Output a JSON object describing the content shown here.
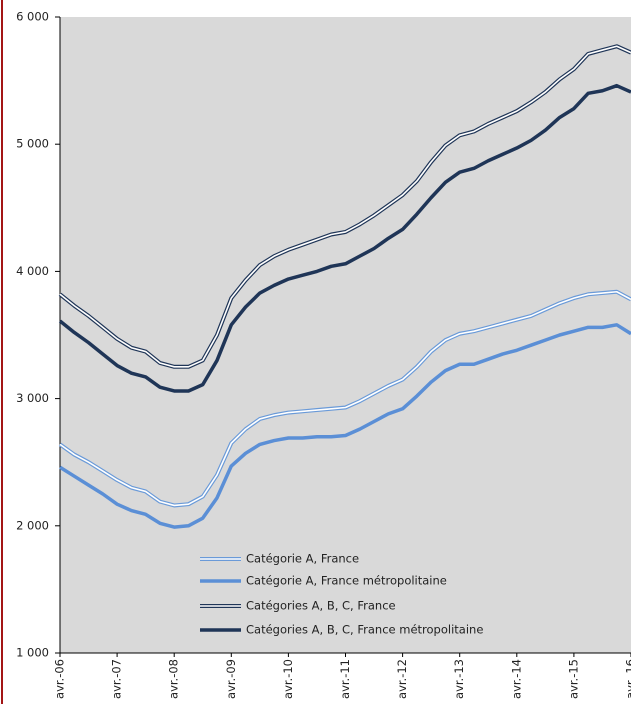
{
  "chart_data": {
    "type": "line",
    "categories": [
      "avr.-06",
      null,
      null,
      null,
      "avr.-07",
      null,
      null,
      null,
      "avr.-08",
      null,
      null,
      null,
      "avr.-09",
      null,
      null,
      null,
      "avr.-10",
      null,
      null,
      null,
      "avr.-11",
      null,
      null,
      null,
      "avr.-12",
      null,
      null,
      null,
      "avr.-13",
      null,
      null,
      null,
      "avr.-14",
      null,
      null,
      null,
      "avr.-15",
      null,
      null,
      null,
      "avr.-16"
    ],
    "ylim": [
      1000,
      6000
    ],
    "yticks": [
      {
        "value": 1000,
        "label": "1 000"
      },
      {
        "value": 2000,
        "label": "2 000"
      },
      {
        "value": 3000,
        "label": "3 000"
      },
      {
        "value": 4000,
        "label": "4 000"
      },
      {
        "value": 5000,
        "label": "5 000"
      },
      {
        "value": 6000,
        "label": "6 000"
      }
    ],
    "grid": false,
    "series": [
      {
        "name": "Catégorie A, France",
        "color": "#6a9ad8",
        "style": "double",
        "values": [
          2640,
          2560,
          2500,
          2430,
          2360,
          2300,
          2270,
          2190,
          2160,
          2170,
          2230,
          2400,
          2650,
          2760,
          2840,
          2870,
          2890,
          2900,
          2910,
          2920,
          2930,
          2980,
          3040,
          3100,
          3150,
          3250,
          3370,
          3460,
          3510,
          3530,
          3560,
          3590,
          3620,
          3650,
          3700,
          3750,
          3790,
          3820,
          3830,
          3840,
          3780
        ]
      },
      {
        "name": "Catégorie A, France métropolitaine",
        "color": "#5b8fd6",
        "style": "solid",
        "values": [
          2460,
          2390,
          2320,
          2250,
          2170,
          2120,
          2090,
          2020,
          1990,
          2000,
          2060,
          2220,
          2470,
          2570,
          2640,
          2670,
          2690,
          2690,
          2700,
          2700,
          2710,
          2760,
          2820,
          2880,
          2920,
          3020,
          3130,
          3220,
          3270,
          3270,
          3310,
          3350,
          3380,
          3420,
          3460,
          3500,
          3530,
          3560,
          3560,
          3580,
          3510
        ]
      },
      {
        "name": "Catégories A, B, C, France",
        "color": "#1f3557",
        "style": "double",
        "values": [
          3820,
          3730,
          3650,
          3560,
          3470,
          3400,
          3370,
          3280,
          3250,
          3250,
          3300,
          3500,
          3790,
          3930,
          4050,
          4120,
          4170,
          4210,
          4250,
          4290,
          4310,
          4370,
          4440,
          4520,
          4600,
          4710,
          4860,
          4990,
          5070,
          5100,
          5160,
          5210,
          5260,
          5330,
          5410,
          5510,
          5590,
          5710,
          5740,
          5770,
          5720
        ]
      },
      {
        "name": "Catégories A, B, C, France métropolitaine",
        "color": "#1f3557",
        "style": "solid",
        "values": [
          3610,
          3520,
          3440,
          3350,
          3260,
          3200,
          3170,
          3090,
          3060,
          3060,
          3110,
          3300,
          3580,
          3720,
          3830,
          3890,
          3940,
          3970,
          4000,
          4040,
          4060,
          4120,
          4180,
          4260,
          4330,
          4450,
          4580,
          4700,
          4780,
          4810,
          4870,
          4920,
          4970,
          5030,
          5110,
          5210,
          5280,
          5400,
          5420,
          5460,
          5410
        ]
      }
    ]
  }
}
